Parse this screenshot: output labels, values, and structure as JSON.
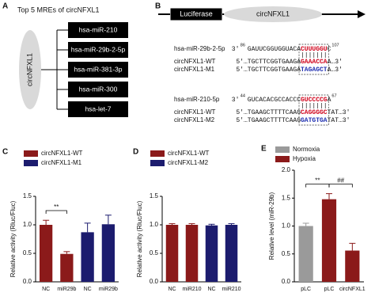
{
  "panel_letters": [
    "A",
    "B",
    "C",
    "D",
    "E"
  ],
  "panel_a": {
    "title": "Top 5 MREs of circNFXL1",
    "center": "circNFXL1",
    "mirnas": [
      "hsa-miR-210",
      "hsa-miR-29b-2-5p",
      "hsa-miR-381-3p",
      "hsa-miR-300",
      "hsa-let-7"
    ]
  },
  "panel_b": {
    "luciferase": "Luciferase",
    "circ": "circNFXL1",
    "rows": [
      {
        "label": "hsa-miR-29b-2-5p",
        "head": "3'",
        "start": "86",
        "pre": "GAUUCGGUGGUACA",
        "mid": "CUUUGGU",
        "post": "C",
        "end": "107",
        "mid_color": "#d0021b"
      },
      {
        "label": "circNFXL1-WT",
        "pre": "5'…TGCTTCGGTGAAGA",
        "mid": "GAAACCA",
        "post": "A…3'",
        "mid_color": "#d0021b"
      },
      {
        "label": "circNFXL1-M1",
        "pre": "5'…TGCTTCGGTGAAGA",
        "mid": "TAGAGCT",
        "post": "A…3'",
        "mid_color": "#1f2fb0"
      },
      {
        "label": "hsa-miR-210-5p",
        "head": "3'",
        "start": "44",
        "pre": "GUCACACGCCACCC",
        "mid": "GUCCCCG",
        "post": "A",
        "end": "67",
        "mid_color": "#d0021b"
      },
      {
        "label": "circNFXL1-WT",
        "pre": "5'…TGAAGCTTTTCAAG",
        "mid": "CAGGGGC",
        "post": "TAT…3'",
        "mid_color": "#d0021b"
      },
      {
        "label": "circNFXL1-M2",
        "pre": "5'…TGAAGCTTTTCAAG",
        "mid": "GATGTGA",
        "post": "TAT…3'",
        "mid_color": "#1f2fb0"
      }
    ]
  },
  "chart_data": [
    {
      "type": "bar",
      "ylabel": "Relative activity (Rluc/Fluc)",
      "categories": [
        "NC",
        "miR29b",
        "NC",
        "miR29b"
      ],
      "series": [
        {
          "name": "circNFXL1-WT",
          "color": "#8b1a1a",
          "values": [
            1.0,
            0.49,
            null,
            null
          ],
          "errors": [
            0.08,
            0.04,
            null,
            null
          ]
        },
        {
          "name": "circNFXL1-M1",
          "color": "#1c1c6e",
          "values": [
            null,
            null,
            0.87,
            1.01
          ],
          "errors": [
            null,
            null,
            0.16,
            0.16
          ]
        }
      ],
      "ylim": [
        0,
        1.5
      ],
      "yticks": [
        {
          "value": 0,
          "label": "0.0"
        },
        {
          "value": 0.5,
          "label": "0.5"
        },
        {
          "value": 1,
          "label": "1.0"
        },
        {
          "value": 1.5,
          "label": "1.5"
        }
      ],
      "annotations": [
        "**"
      ]
    },
    {
      "type": "bar",
      "ylabel": "Relative activity (Rluc/Fluc)",
      "categories": [
        "NC",
        "miR210",
        "NC",
        "miR210"
      ],
      "series": [
        {
          "name": "circNFXL1-WT",
          "color": "#8b1a1a",
          "values": [
            1.0,
            1.0,
            null,
            null
          ],
          "errors": [
            0.02,
            0.02,
            null,
            null
          ]
        },
        {
          "name": "circNFXL1-M2",
          "color": "#1c1c6e",
          "values": [
            null,
            null,
            0.99,
            1.0
          ],
          "errors": [
            null,
            null,
            0.02,
            0.02
          ]
        }
      ],
      "ylim": [
        0,
        1.5
      ],
      "yticks": [
        {
          "value": 0,
          "label": "0.0"
        },
        {
          "value": 0.5,
          "label": "0.5"
        },
        {
          "value": 1,
          "label": "1.0"
        },
        {
          "value": 1.5,
          "label": "1.5"
        }
      ],
      "annotations": []
    },
    {
      "type": "bar",
      "ylabel": "Relative level (miR-29b)",
      "categories": [
        "pLC",
        "pLC",
        "circNFXL1"
      ],
      "series": [
        {
          "name": "Normoxia",
          "color": "#9a9a9a",
          "values": [
            1.0,
            null,
            null
          ],
          "errors": [
            0.05,
            null,
            null
          ]
        },
        {
          "name": "Hypoxia",
          "color": "#8b1a1a",
          "values": [
            null,
            1.48,
            0.56
          ],
          "errors": [
            null,
            0.1,
            0.13
          ]
        }
      ],
      "ylim": [
        0,
        2
      ],
      "yticks": [
        {
          "value": 0,
          "label": "0.0"
        },
        {
          "value": 0.5,
          "label": "0.5"
        },
        {
          "value": 1,
          "label": "1.0"
        },
        {
          "value": 1.5,
          "label": "1.5"
        },
        {
          "value": 2,
          "label": "2.0"
        }
      ],
      "annotations": [
        "**",
        "##"
      ]
    }
  ]
}
